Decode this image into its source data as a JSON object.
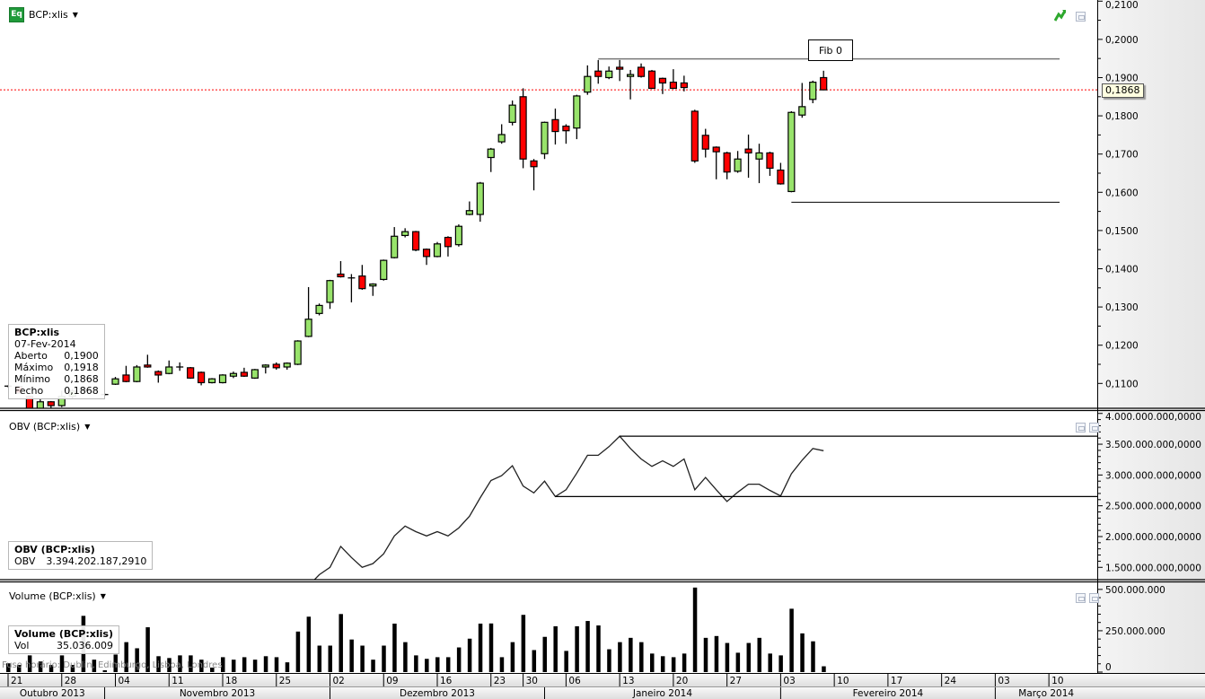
{
  "header": {
    "icon_text": "Eq",
    "symbol": "BCP:xlis"
  },
  "price_panel": {
    "title": "BCP:xlis",
    "tooltip": {
      "symbol": "BCP:xlis",
      "date": "07-Fev-2014",
      "rows": [
        {
          "label": "Aberto",
          "value": "0,1900"
        },
        {
          "label": "Máximo",
          "value": "0,1918"
        },
        {
          "label": "Mínimo",
          "value": "0,1868"
        },
        {
          "label": "Fecho",
          "value": "0,1868"
        }
      ]
    },
    "last_price_label": "0,1868",
    "fib_label": "Fib 0"
  },
  "obv_panel": {
    "title": "OBV (BCP:xlis)",
    "tooltip": {
      "title": "OBV (BCP:xlis)",
      "label": "OBV",
      "value": "3.394.202.187,2910"
    }
  },
  "volume_panel": {
    "title": "Volume (BCP:xlis)",
    "tooltip": {
      "title": "Volume (BCP:xlis)",
      "label": "Vol",
      "value": "35.036.009"
    }
  },
  "timezone_note": "Fuso horário: Dublin, Edimburgo, Lisboa, Londres",
  "colors": {
    "up": "#98e36b",
    "down": "#ff0000",
    "last_price_line": "#ff0000",
    "axis_bg": "#ececec",
    "icon_green": "#1f9a3a"
  },
  "icons": {
    "symbol": "equity-icon",
    "trend": "trend-arrow-icon",
    "panel": "restore-window-icon",
    "menu": "caret-down-icon"
  },
  "x_axis": {
    "xlim": [
      "2013-10-21",
      "2014-03-14"
    ],
    "week_ticks": [
      {
        "date": "2013-10-21",
        "label": "21"
      },
      {
        "date": "2013-10-28",
        "label": "28"
      },
      {
        "date": "2013-11-04",
        "label": "04"
      },
      {
        "date": "2013-11-11",
        "label": "11"
      },
      {
        "date": "2013-11-18",
        "label": "18"
      },
      {
        "date": "2013-11-25",
        "label": "25"
      },
      {
        "date": "2013-12-02",
        "label": "02"
      },
      {
        "date": "2013-12-09",
        "label": "09"
      },
      {
        "date": "2013-12-16",
        "label": "16"
      },
      {
        "date": "2013-12-23",
        "label": "23"
      },
      {
        "date": "2013-12-30",
        "label": "30"
      },
      {
        "date": "2014-01-06",
        "label": "06"
      },
      {
        "date": "2014-01-13",
        "label": "13"
      },
      {
        "date": "2014-01-20",
        "label": "20"
      },
      {
        "date": "2014-01-27",
        "label": "27"
      },
      {
        "date": "2014-02-03",
        "label": "03"
      },
      {
        "date": "2014-02-10",
        "label": "10"
      },
      {
        "date": "2014-02-17",
        "label": "17"
      },
      {
        "date": "2014-02-24",
        "label": "24"
      },
      {
        "date": "2014-03-03",
        "label": "03"
      },
      {
        "date": "2014-03-10",
        "label": "10"
      }
    ],
    "months": [
      {
        "label": "Outubro 2013",
        "start": "2013-10-01"
      },
      {
        "label": "Novembro 2013",
        "start": "2013-11-01"
      },
      {
        "label": "Dezembro 2013",
        "start": "2013-12-02"
      },
      {
        "label": "Janeiro 2014",
        "start": "2014-01-02"
      },
      {
        "label": "Fevereiro 2014",
        "start": "2014-02-03"
      },
      {
        "label": "Março 2014",
        "start": "2014-03-03"
      }
    ]
  },
  "chart_data": [
    {
      "type": "candlestick",
      "title": "BCP:xlis",
      "ylim": [
        0.1035,
        0.2103
      ],
      "y_ticks": [
        {
          "value": 0.21,
          "label": "0,2100"
        },
        {
          "value": 0.2,
          "label": "0,2000"
        },
        {
          "value": 0.19,
          "label": "0,1900"
        },
        {
          "value": 0.18,
          "label": "0,1800"
        },
        {
          "value": 0.17,
          "label": "0,1700"
        },
        {
          "value": 0.16,
          "label": "0,1600"
        },
        {
          "value": 0.15,
          "label": "0,1500"
        },
        {
          "value": 0.14,
          "label": "0,1400"
        },
        {
          "value": 0.13,
          "label": "0,1300"
        },
        {
          "value": 0.12,
          "label": "0,1200"
        },
        {
          "value": 0.11,
          "label": "0,1100"
        }
      ],
      "last_price": 0.1868,
      "fields": [
        "date",
        "open",
        "high",
        "low",
        "close"
      ],
      "candles": [
        [
          "2013-10-21",
          0.1093,
          0.1095,
          0.109,
          0.1093
        ],
        [
          "2013-10-22",
          0.1092,
          0.1094,
          0.1073,
          0.1075
        ],
        [
          "2013-10-23",
          0.1066,
          0.1068,
          0.1025,
          0.1028
        ],
        [
          "2013-10-24",
          0.103,
          0.1059,
          0.1028,
          0.1052
        ],
        [
          "2013-10-25",
          0.1052,
          0.1054,
          0.1035,
          0.1042
        ],
        [
          "2013-10-28",
          0.1042,
          0.1081,
          0.1038,
          0.1066
        ],
        [
          "2013-10-29",
          0.1066,
          0.1085,
          0.106,
          0.108
        ],
        [
          "2013-10-30",
          0.108,
          0.109,
          0.1075,
          0.1084
        ],
        [
          "2013-10-31",
          0.1078,
          0.108,
          0.1076,
          0.1078
        ],
        [
          "2013-11-01",
          0.1071,
          0.1074,
          0.1068,
          0.1071
        ],
        [
          "2013-11-04",
          0.1098,
          0.1117,
          0.1096,
          0.1112
        ],
        [
          "2013-11-05",
          0.1122,
          0.1146,
          0.1103,
          0.1105
        ],
        [
          "2013-11-06",
          0.1105,
          0.1148,
          0.1103,
          0.1143
        ],
        [
          "2013-11-07",
          0.1148,
          0.1175,
          0.1141,
          0.1143
        ],
        [
          "2013-11-08",
          0.1131,
          0.1134,
          0.1102,
          0.1122
        ],
        [
          "2013-11-11",
          0.1126,
          0.116,
          0.1124,
          0.1143
        ],
        [
          "2013-11-12",
          0.1143,
          0.1155,
          0.1133,
          0.1143
        ],
        [
          "2013-11-13",
          0.1141,
          0.1143,
          0.1112,
          0.1114
        ],
        [
          "2013-11-14",
          0.1129,
          0.1131,
          0.1095,
          0.1102
        ],
        [
          "2013-11-15",
          0.1102,
          0.1114,
          0.11,
          0.1112
        ],
        [
          "2013-11-18",
          0.1102,
          0.1124,
          0.11,
          0.1122
        ],
        [
          "2013-11-19",
          0.1119,
          0.1131,
          0.1114,
          0.1126
        ],
        [
          "2013-11-20",
          0.1129,
          0.1141,
          0.1117,
          0.1119
        ],
        [
          "2013-11-21",
          0.1114,
          0.1138,
          0.1112,
          0.1136
        ],
        [
          "2013-11-22",
          0.1143,
          0.115,
          0.1126,
          0.1148
        ],
        [
          "2013-11-25",
          0.115,
          0.1155,
          0.1136,
          0.1141
        ],
        [
          "2013-11-26",
          0.1143,
          0.1155,
          0.1136,
          0.1153
        ],
        [
          "2013-11-27",
          0.115,
          0.1213,
          0.1148,
          0.1211
        ],
        [
          "2013-11-28",
          0.1223,
          0.1352,
          0.1221,
          0.1268
        ],
        [
          "2013-11-29",
          0.1283,
          0.1309,
          0.1278,
          0.1304
        ],
        [
          "2013-12-02",
          0.1312,
          0.1371,
          0.1295,
          0.1369
        ],
        [
          "2013-12-03",
          0.1386,
          0.142,
          0.1377,
          0.1379
        ],
        [
          "2013-12-04",
          0.1376,
          0.1386,
          0.1312,
          0.1376
        ],
        [
          "2013-12-05",
          0.1381,
          0.141,
          0.1345,
          0.1348
        ],
        [
          "2013-12-06",
          0.1355,
          0.1362,
          0.1329,
          0.136
        ],
        [
          "2013-12-09",
          0.1372,
          0.1424,
          0.1369,
          0.1422
        ],
        [
          "2013-12-10",
          0.1429,
          0.1509,
          0.1427,
          0.1485
        ],
        [
          "2013-12-11",
          0.1487,
          0.1506,
          0.1482,
          0.1497
        ],
        [
          "2013-12-12",
          0.1497,
          0.1499,
          0.1446,
          0.1449
        ],
        [
          "2013-12-13",
          0.1451,
          0.1453,
          0.141,
          0.1432
        ],
        [
          "2013-12-16",
          0.1432,
          0.147,
          0.143,
          0.1465
        ],
        [
          "2013-12-17",
          0.1482,
          0.1485,
          0.1432,
          0.1458
        ],
        [
          "2013-12-18",
          0.1463,
          0.1516,
          0.1458,
          0.1511
        ],
        [
          "2013-12-19",
          0.1542,
          0.1576,
          0.154,
          0.1552
        ],
        [
          "2013-12-20",
          0.1542,
          0.1627,
          0.1523,
          0.1624
        ],
        [
          "2013-12-23",
          0.1691,
          0.1716,
          0.1653,
          0.1713
        ],
        [
          "2013-12-24",
          0.1732,
          0.1778,
          0.1727,
          0.1751
        ],
        [
          "2013-12-27",
          0.1783,
          0.184,
          0.1775,
          0.1828
        ],
        [
          "2013-12-30",
          0.185,
          0.1872,
          0.1663,
          0.1687
        ],
        [
          "2013-12-31",
          0.1682,
          0.1687,
          0.1605,
          0.1667
        ],
        [
          "2014-01-02",
          0.1701,
          0.1785,
          0.1687,
          0.1783
        ],
        [
          "2014-01-03",
          0.179,
          0.1819,
          0.1725,
          0.1759
        ],
        [
          "2014-01-06",
          0.1773,
          0.1778,
          0.1727,
          0.1761
        ],
        [
          "2014-01-07",
          0.1768,
          0.1855,
          0.1739,
          0.1852
        ],
        [
          "2014-01-08",
          0.1862,
          0.1932,
          0.1855,
          0.1903
        ],
        [
          "2014-01-09",
          0.1917,
          0.1946,
          0.1884,
          0.1903
        ],
        [
          "2014-01-10",
          0.19,
          0.1929,
          0.1896,
          0.1917
        ],
        [
          "2014-01-13",
          0.1927,
          0.1946,
          0.1891,
          0.1922
        ],
        [
          "2014-01-14",
          0.1903,
          0.192,
          0.1843,
          0.1908
        ],
        [
          "2014-01-15",
          0.1927,
          0.1937,
          0.19,
          0.1903
        ],
        [
          "2014-01-16",
          0.1917,
          0.192,
          0.187,
          0.1872
        ],
        [
          "2014-01-17",
          0.1898,
          0.19,
          0.1857,
          0.1886
        ],
        [
          "2014-01-20",
          0.1888,
          0.1922,
          0.187,
          0.1872
        ],
        [
          "2014-01-21",
          0.1886,
          0.1905,
          0.1864,
          0.1874
        ],
        [
          "2014-01-22",
          0.1812,
          0.1816,
          0.1677,
          0.1682
        ],
        [
          "2014-01-23",
          0.1749,
          0.1766,
          0.1691,
          0.1713
        ],
        [
          "2014-01-24",
          0.1718,
          0.172,
          0.1634,
          0.1706
        ],
        [
          "2014-01-27",
          0.1703,
          0.1706,
          0.1634,
          0.1653
        ],
        [
          "2014-01-28",
          0.1655,
          0.1708,
          0.1651,
          0.1687
        ],
        [
          "2014-01-29",
          0.1713,
          0.1751,
          0.1638,
          0.1703
        ],
        [
          "2014-01-30",
          0.1687,
          0.1727,
          0.1624,
          0.1703
        ],
        [
          "2014-01-31",
          0.1703,
          0.1706,
          0.1643,
          0.1663
        ],
        [
          "2014-02-03",
          0.1658,
          0.1677,
          0.162,
          0.1622
        ],
        [
          "2014-02-04",
          0.1602,
          0.1812,
          0.16,
          0.1809
        ],
        [
          "2014-02-05",
          0.1802,
          0.1886,
          0.1795,
          0.1824
        ],
        [
          "2014-02-06",
          0.1843,
          0.1892,
          0.1833,
          0.1888
        ],
        [
          "2014-02-07",
          0.19,
          0.1918,
          0.1868,
          0.1868
        ]
      ],
      "annotations": [
        {
          "type": "hline",
          "value": 0.1949,
          "from": "2014-01-09",
          "to": "2014-03-11",
          "label": "Fib 0"
        },
        {
          "type": "hline",
          "value": 0.1574,
          "from": "2014-02-04",
          "to": "2014-03-11"
        }
      ]
    },
    {
      "type": "line",
      "title": "OBV (BCP:xlis)",
      "ylim": [
        1300000000,
        4040000000
      ],
      "y_ticks": [
        {
          "value": 4000000000,
          "label": "4.000.000.000,0000"
        },
        {
          "value": 3500000000,
          "label": "3.500.000.000,0000"
        },
        {
          "value": 3000000000,
          "label": "3.000.000.000,0000"
        },
        {
          "value": 2500000000,
          "label": "2.500.000.000,0000"
        },
        {
          "value": 2000000000,
          "label": "2.000.000.000,0000"
        },
        {
          "value": 1500000000,
          "label": "1.500.000.000,0000"
        }
      ],
      "x_start": "2013-11-28",
      "values": [
        1200000000,
        1380000000,
        1500000000,
        1840000000,
        1660000000,
        1500000000,
        1560000000,
        1720000000,
        2010000000,
        2170000000,
        2080000000,
        2010000000,
        2080000000,
        2010000000,
        2140000000,
        2330000000,
        2630000000,
        2910000000,
        2990000000,
        3150000000,
        2820000000,
        2710000000,
        2900000000,
        2650000000,
        2760000000,
        3030000000,
        3320000000,
        3320000000,
        3460000000,
        3630000000,
        3430000000,
        3260000000,
        3140000000,
        3230000000,
        3140000000,
        3260000000,
        2760000000,
        2960000000,
        2760000000,
        2570000000,
        2720000000,
        2850000000,
        2850000000,
        2750000000,
        2660000000,
        3020000000,
        3240000000,
        3430000000,
        3394202187.291
      ],
      "annotations": [
        {
          "type": "hline",
          "value": 3630000000,
          "from": "2014-01-13"
        },
        {
          "type": "hline",
          "value": 2650000000,
          "from": "2014-01-03"
        }
      ]
    },
    {
      "type": "bar",
      "title": "Volume (BCP:xlis)",
      "ylim": [
        0,
        510000000
      ],
      "y_ticks": [
        {
          "value": 500000000,
          "label": "500.000.000"
        },
        {
          "value": 250000000,
          "label": "250.000.000"
        },
        {
          "value": 0,
          "label": "0"
        }
      ],
      "values": [
        53000000,
        43000000,
        101000000,
        64000000,
        43000000,
        101000000,
        43000000,
        340000000,
        75000000,
        11000000,
        106000000,
        181000000,
        144000000,
        271000000,
        96000000,
        85000000,
        101000000,
        101000000,
        75000000,
        27000000,
        90000000,
        75000000,
        90000000,
        75000000,
        96000000,
        90000000,
        59000000,
        245000000,
        335000000,
        160000000,
        160000000,
        351000000,
        197000000,
        160000000,
        75000000,
        160000000,
        293000000,
        181000000,
        101000000,
        80000000,
        90000000,
        90000000,
        149000000,
        202000000,
        293000000,
        294000000,
        90000000,
        181000000,
        346000000,
        133000000,
        213000000,
        277000000,
        128000000,
        277000000,
        309000000,
        282000000,
        138000000,
        181000000,
        207000000,
        181000000,
        112000000,
        96000000,
        90000000,
        112000000,
        511000000,
        207000000,
        218000000,
        176000000,
        117000000,
        176000000,
        207000000,
        112000000,
        101000000,
        383000000,
        234000000,
        186000000,
        35036009
      ]
    }
  ]
}
